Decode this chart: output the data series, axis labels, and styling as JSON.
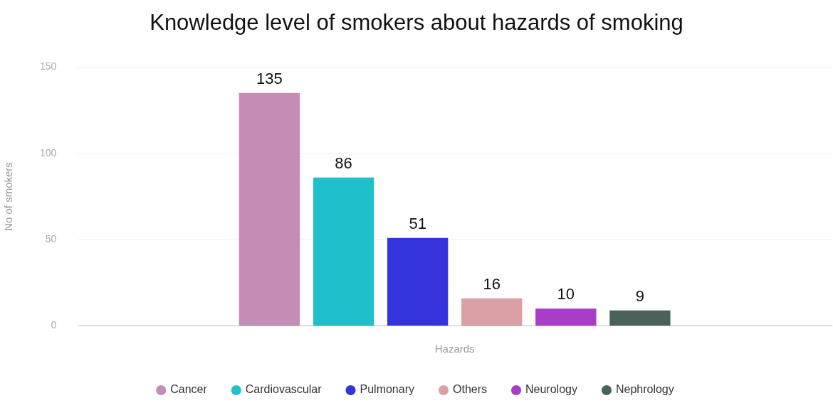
{
  "chart_data": {
    "type": "bar",
    "title": "Knowledge level of smokers about hazards of smoking",
    "xlabel": "Hazards",
    "ylabel": "No of smokers",
    "categories": [
      null
    ],
    "series": [
      {
        "name": "Cancer",
        "color": "#c58cb5",
        "values": [
          135
        ]
      },
      {
        "name": "Cardiovascular",
        "color": "#1fbfcb",
        "values": [
          86
        ]
      },
      {
        "name": "Pulmonary",
        "color": "#3434dc",
        "values": [
          51
        ]
      },
      {
        "name": "Others",
        "color": "#daa0a5",
        "values": [
          16
        ]
      },
      {
        "name": "Neurology",
        "color": "#a93cc9",
        "values": [
          10
        ]
      },
      {
        "name": "Nephrology",
        "color": "#4a6358",
        "values": [
          9
        ]
      }
    ],
    "ylim": [
      0,
      150
    ],
    "yticks": [
      0,
      50,
      100,
      150
    ],
    "grid": "y",
    "legend": "bottom",
    "data_labels": true
  }
}
